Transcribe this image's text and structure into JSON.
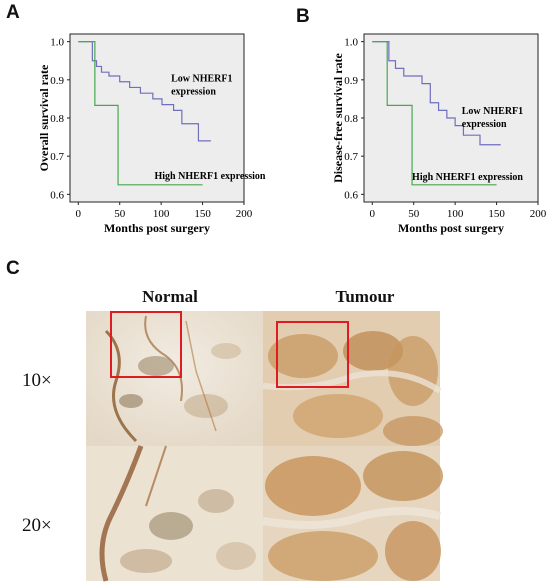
{
  "panels": {
    "a": "A",
    "b": "B",
    "c": "C"
  },
  "colors": {
    "low": "#6f6fbf",
    "high": "#49a84f",
    "plot_bg": "#ededed",
    "red_box": "#e11b22"
  },
  "chart_data": [
    {
      "type": "line",
      "step": true,
      "xlabel": "Months post surgery",
      "ylabel": "Overall survival rate",
      "xlim": [
        -10,
        200
      ],
      "ylim": [
        0.58,
        1.02
      ],
      "xticks": [
        0,
        50,
        100,
        150,
        200
      ],
      "yticks": [
        0.6,
        0.7,
        0.8,
        0.9,
        1.0
      ],
      "grid": false,
      "series": [
        {
          "name": "Low NHERF1 expression",
          "label_lines": [
            "Low NHERF1",
            "expression"
          ],
          "color": "#6f6fbf",
          "x": [
            0,
            17,
            22,
            28,
            37,
            50,
            62,
            75,
            90,
            101,
            115,
            125,
            145,
            160
          ],
          "y": [
            1.0,
            0.95,
            0.935,
            0.92,
            0.91,
            0.895,
            0.88,
            0.865,
            0.85,
            0.835,
            0.82,
            0.785,
            0.74,
            0.74
          ]
        },
        {
          "name": "High NHERF1 expression",
          "label_lines": [
            "High NHERF1 expression"
          ],
          "color": "#49a84f",
          "x": [
            0,
            20,
            48,
            150
          ],
          "y": [
            1.0,
            0.833,
            0.625,
            0.625
          ]
        }
      ]
    },
    {
      "type": "line",
      "step": true,
      "xlabel": "Months post surgery",
      "ylabel": "Disease-free survival rate",
      "xlim": [
        -10,
        200
      ],
      "ylim": [
        0.58,
        1.02
      ],
      "xticks": [
        0,
        50,
        100,
        150,
        200
      ],
      "yticks": [
        0.6,
        0.7,
        0.8,
        0.9,
        1.0
      ],
      "grid": false,
      "series": [
        {
          "name": "Low NHERF1 expression",
          "label_lines": [
            "Low NHERF1",
            "expression"
          ],
          "color": "#6f6fbf",
          "x": [
            0,
            20,
            28,
            38,
            60,
            70,
            80,
            90,
            100,
            110,
            130,
            155
          ],
          "y": [
            1.0,
            0.95,
            0.93,
            0.91,
            0.89,
            0.84,
            0.82,
            0.8,
            0.78,
            0.755,
            0.73,
            0.73
          ]
        },
        {
          "name": "High NHERF1 expression",
          "label_lines": [
            "High NHERF1 expression"
          ],
          "color": "#49a84f",
          "x": [
            0,
            18,
            48,
            150
          ],
          "y": [
            1.0,
            0.833,
            0.625,
            0.625
          ]
        }
      ]
    }
  ],
  "histology": {
    "columns": [
      "Normal",
      "Tumour"
    ],
    "rows": [
      "10×",
      "20×"
    ]
  }
}
